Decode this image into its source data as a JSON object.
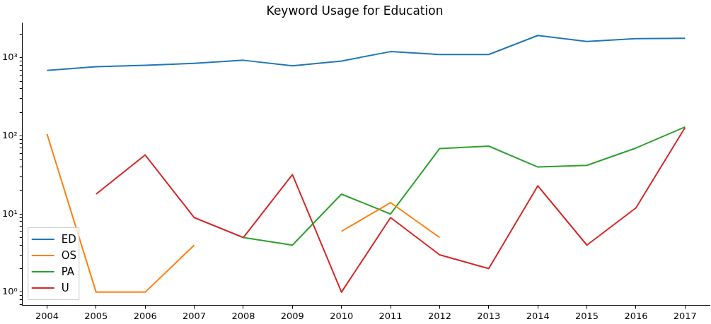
{
  "chart_data": {
    "type": "line",
    "title": "Keyword Usage for Education",
    "categories": [
      "2004",
      "2005",
      "2006",
      "2007",
      "2008",
      "2009",
      "2010",
      "2011",
      "2012",
      "2013",
      "2014",
      "2015",
      "2016",
      "2017"
    ],
    "series": [
      {
        "name": "ED",
        "color": "#1f77b4",
        "values": [
          690,
          770,
          800,
          850,
          930,
          790,
          910,
          1200,
          1100,
          1100,
          1930,
          1620,
          1760,
          1780
        ]
      },
      {
        "name": "OS",
        "color": "#ff7f0e",
        "values": [
          106,
          1,
          1,
          4,
          null,
          null,
          6,
          14,
          5,
          null,
          null,
          null,
          null,
          null
        ]
      },
      {
        "name": "PA",
        "color": "#2ca02c",
        "values": [
          null,
          null,
          null,
          null,
          5,
          4,
          18,
          10,
          69,
          74,
          40,
          42,
          70,
          130
        ]
      },
      {
        "name": "U",
        "color": "#d62728",
        "values": [
          null,
          18,
          57,
          9,
          5,
          32,
          1,
          9,
          3,
          2,
          23,
          4,
          12,
          128
        ]
      }
    ],
    "log": "y",
    "ylim": [
      0.68,
      2800
    ],
    "yticks": [
      {
        "value": 0.7,
        "label": null
      },
      {
        "value": 0.8,
        "label": null
      },
      {
        "value": 0.9,
        "label": null
      },
      {
        "value": 1,
        "label": "10⁰"
      },
      {
        "value": 2,
        "label": null
      },
      {
        "value": 3,
        "label": null
      },
      {
        "value": 4,
        "label": null
      },
      {
        "value": 5,
        "label": null
      },
      {
        "value": 6,
        "label": null
      },
      {
        "value": 7,
        "label": null
      },
      {
        "value": 8,
        "label": null
      },
      {
        "value": 9,
        "label": null
      },
      {
        "value": 10,
        "label": "10¹"
      },
      {
        "value": 20,
        "label": null
      },
      {
        "value": 30,
        "label": null
      },
      {
        "value": 40,
        "label": null
      },
      {
        "value": 50,
        "label": null
      },
      {
        "value": 60,
        "label": null
      },
      {
        "value": 70,
        "label": null
      },
      {
        "value": 80,
        "label": null
      },
      {
        "value": 90,
        "label": null
      },
      {
        "value": 100,
        "label": "10²"
      },
      {
        "value": 200,
        "label": null
      },
      {
        "value": 300,
        "label": null
      },
      {
        "value": 400,
        "label": null
      },
      {
        "value": 500,
        "label": null
      },
      {
        "value": 600,
        "label": null
      },
      {
        "value": 700,
        "label": null
      },
      {
        "value": 800,
        "label": null
      },
      {
        "value": 900,
        "label": null
      },
      {
        "value": 1000,
        "label": "10³"
      },
      {
        "value": 2000,
        "label": null
      }
    ],
    "grid": false,
    "legend": "bottom left",
    "marker": "none",
    "line_style": "solid"
  }
}
